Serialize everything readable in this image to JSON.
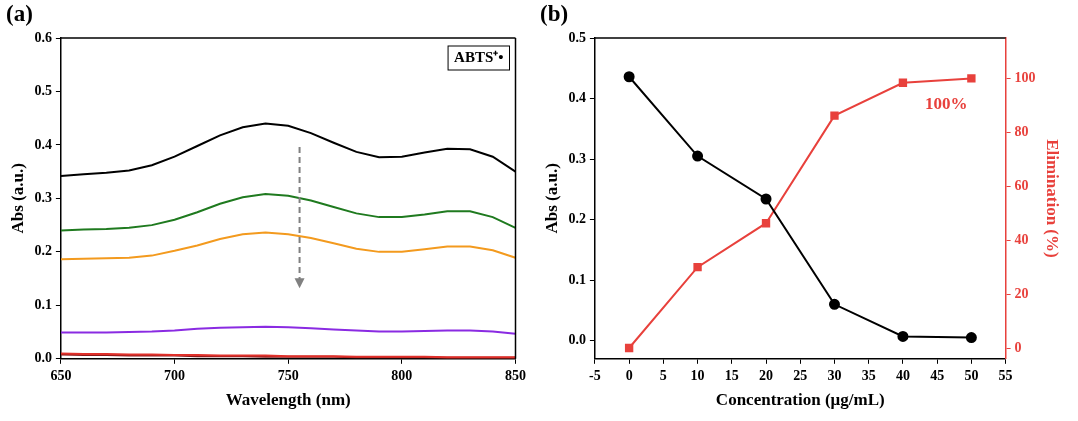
{
  "chart_data": [
    {
      "type": "line",
      "panel_label": "(a)",
      "x_label": "Wavelength (nm)",
      "y_label": "Abs (a.u.)",
      "annotations": [
        "ABTS⁺•"
      ],
      "x": [
        650,
        660,
        670,
        680,
        690,
        700,
        710,
        720,
        730,
        740,
        750,
        760,
        770,
        780,
        790,
        800,
        810,
        820,
        830,
        840,
        850
      ],
      "series": [
        {
          "color": "#000000",
          "marker": "none",
          "line_style": "solid",
          "values": [
            0.342,
            0.345,
            0.348,
            0.352,
            0.362,
            0.378,
            0.398,
            0.418,
            0.433,
            0.44,
            0.436,
            0.422,
            0.404,
            0.387,
            0.377,
            0.378,
            0.386,
            0.393,
            0.392,
            0.378,
            0.35
          ]
        },
        {
          "color": "#1f7a1f",
          "marker": "none",
          "line_style": "solid",
          "values": [
            0.24,
            0.242,
            0.243,
            0.245,
            0.25,
            0.26,
            0.274,
            0.29,
            0.302,
            0.308,
            0.305,
            0.296,
            0.284,
            0.272,
            0.265,
            0.265,
            0.27,
            0.276,
            0.276,
            0.265,
            0.245
          ]
        },
        {
          "color": "#f39a1e",
          "marker": "none",
          "line_style": "solid",
          "values": [
            0.186,
            0.187,
            0.188,
            0.189,
            0.193,
            0.202,
            0.212,
            0.224,
            0.233,
            0.236,
            0.233,
            0.226,
            0.216,
            0.206,
            0.2,
            0.2,
            0.205,
            0.21,
            0.21,
            0.203,
            0.189
          ]
        },
        {
          "color": "#8a2be2",
          "marker": "none",
          "line_style": "solid",
          "values": [
            0.049,
            0.049,
            0.049,
            0.05,
            0.051,
            0.053,
            0.056,
            0.058,
            0.059,
            0.06,
            0.059,
            0.057,
            0.055,
            0.053,
            0.051,
            0.051,
            0.052,
            0.053,
            0.053,
            0.051,
            0.047
          ]
        },
        {
          "color": "#e0302a",
          "marker": "none",
          "line_style": "solid",
          "values": [
            0.01,
            0.009,
            0.009,
            0.008,
            0.008,
            0.007,
            0.007,
            0.006,
            0.006,
            0.006,
            0.005,
            0.005,
            0.005,
            0.004,
            0.004,
            0.004,
            0.004,
            0.003,
            0.003,
            0.003,
            0.003
          ]
        },
        {
          "color": "#8b1a1a",
          "marker": "none",
          "line_style": "solid",
          "values": [
            0.008,
            0.007,
            0.007,
            0.006,
            0.006,
            0.006,
            0.005,
            0.005,
            0.005,
            0.004,
            0.004,
            0.004,
            0.004,
            0.003,
            0.003,
            0.003,
            0.003,
            0.002,
            0.002,
            0.002,
            0.002
          ]
        }
      ],
      "xlim": [
        650,
        850
      ],
      "xticks": [
        650,
        700,
        750,
        800,
        850
      ],
      "ylim": [
        0,
        0.6
      ],
      "yticks": [
        {
          "value": 0,
          "label": "0.0"
        },
        0.1,
        0.2,
        0.3,
        0.4,
        0.5,
        0.6
      ],
      "grid": false,
      "legend": "none"
    },
    {
      "type": "line",
      "panel_label": "(b)",
      "x_label": "Concentration (μg/mL)",
      "y_label": "Abs (a.u.)",
      "y2_label": "Elimination (%)",
      "annotations": [
        "100%"
      ],
      "x": [
        0,
        10,
        20,
        30,
        40,
        50
      ],
      "series": [
        {
          "color": "#000000",
          "marker": "circle",
          "line_style": "solid",
          "values": [
            0.436,
            0.305,
            0.234,
            0.06,
            0.007,
            0.005
          ]
        },
        {
          "color": "#e8413c",
          "marker": "square",
          "line_style": "solid",
          "axis": "y2",
          "values": [
            0,
            30,
            46.3,
            86.2,
            98.4,
            100
          ]
        }
      ],
      "xlim": [
        -5,
        55
      ],
      "xticks": [
        -5,
        0,
        5,
        10,
        15,
        20,
        25,
        30,
        35,
        40,
        45,
        50,
        55
      ],
      "ylim": [
        -0.03,
        0.5
      ],
      "yticks": [
        {
          "value": 0,
          "label": "0.0"
        },
        0.1,
        0.2,
        0.3,
        0.4,
        0.5
      ],
      "y2lim": [
        -4,
        115
      ],
      "y2ticks": [
        0,
        20,
        40,
        60,
        80,
        100
      ],
      "grid": false,
      "legend": "none"
    }
  ]
}
